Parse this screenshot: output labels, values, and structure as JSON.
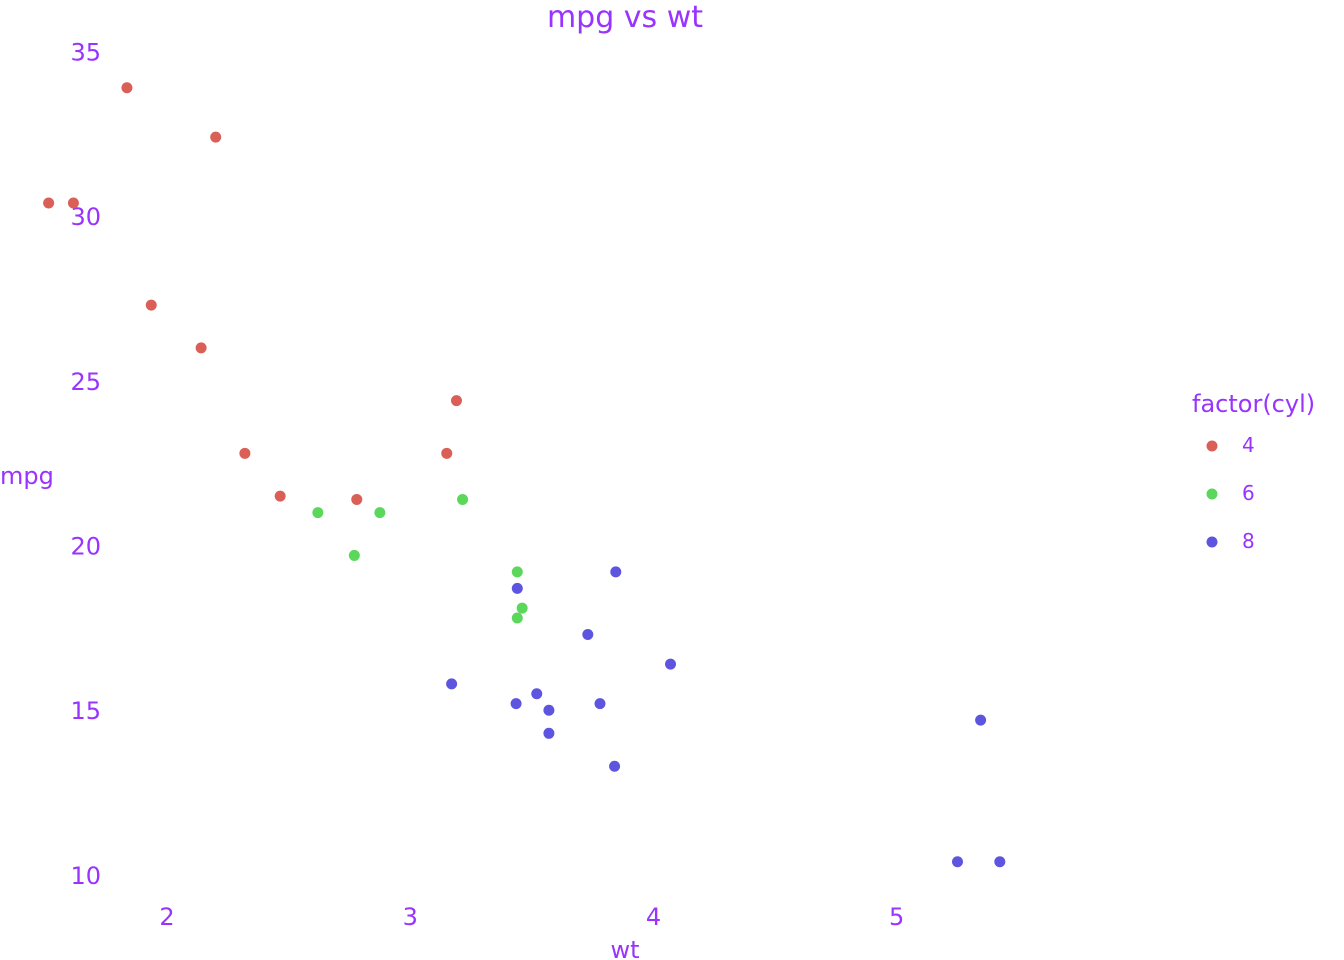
{
  "chart_data": {
    "type": "scatter",
    "title": "mpg vs wt",
    "xlabel": "wt",
    "ylabel": "mpg",
    "xlim": [
      1.42,
      5.84
    ],
    "ylim": [
      9.3,
      35.5
    ],
    "xticks": [
      2,
      3,
      4,
      5
    ],
    "yticks": [
      10,
      15,
      20,
      25,
      30,
      35
    ],
    "grid": false,
    "legend": {
      "title": "factor(cyl)",
      "position": "right"
    },
    "text_color": "#9933ff",
    "series": [
      {
        "name": "4",
        "color": "#da5f57",
        "points": [
          {
            "x": 2.32,
            "y": 22.8
          },
          {
            "x": 3.19,
            "y": 24.4
          },
          {
            "x": 3.15,
            "y": 22.8
          },
          {
            "x": 2.2,
            "y": 32.4
          },
          {
            "x": 1.615,
            "y": 30.4
          },
          {
            "x": 1.835,
            "y": 33.9
          },
          {
            "x": 2.465,
            "y": 21.5
          },
          {
            "x": 1.935,
            "y": 27.3
          },
          {
            "x": 2.14,
            "y": 26.0
          },
          {
            "x": 1.513,
            "y": 30.4
          },
          {
            "x": 2.78,
            "y": 21.4
          }
        ]
      },
      {
        "name": "6",
        "color": "#5bd75b",
        "points": [
          {
            "x": 2.62,
            "y": 21.0
          },
          {
            "x": 2.875,
            "y": 21.0
          },
          {
            "x": 3.215,
            "y": 21.4
          },
          {
            "x": 3.44,
            "y": 19.2
          },
          {
            "x": 3.46,
            "y": 18.1
          },
          {
            "x": 3.44,
            "y": 17.8
          },
          {
            "x": 2.77,
            "y": 19.7
          }
        ]
      },
      {
        "name": "8",
        "color": "#5d55df",
        "points": [
          {
            "x": 3.44,
            "y": 18.7
          },
          {
            "x": 3.57,
            "y": 14.3
          },
          {
            "x": 4.07,
            "y": 16.4
          },
          {
            "x": 3.73,
            "y": 17.3
          },
          {
            "x": 3.78,
            "y": 15.2
          },
          {
            "x": 5.25,
            "y": 10.4
          },
          {
            "x": 5.424,
            "y": 10.4
          },
          {
            "x": 5.345,
            "y": 14.7
          },
          {
            "x": 3.52,
            "y": 15.5
          },
          {
            "x": 3.435,
            "y": 15.2
          },
          {
            "x": 3.84,
            "y": 13.3
          },
          {
            "x": 3.845,
            "y": 19.2
          },
          {
            "x": 3.17,
            "y": 15.8
          },
          {
            "x": 3.57,
            "y": 15.0
          }
        ]
      }
    ]
  }
}
